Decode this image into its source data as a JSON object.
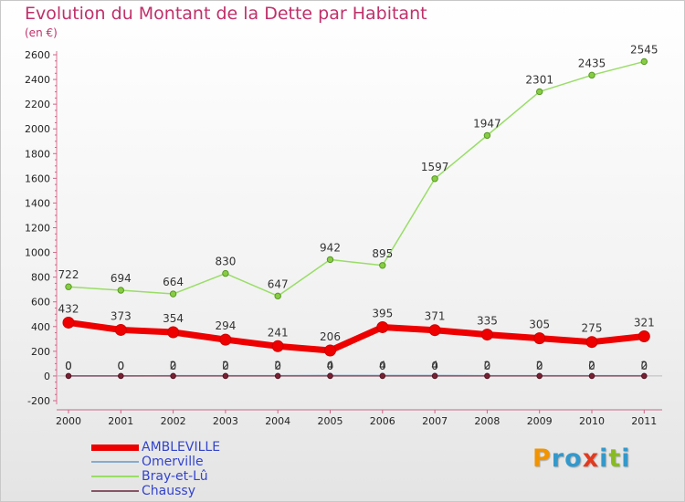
{
  "title": "Evolution du Montant de la Dette par Habitant",
  "subtitle": "(en €)",
  "logo": {
    "text": "Proxiti",
    "letters": [
      {
        "ch": "P",
        "color": "#f29400"
      },
      {
        "ch": "r",
        "color": "#3399cc"
      },
      {
        "ch": "o",
        "color": "#3399cc"
      },
      {
        "ch": "x",
        "color": "#e23a1e"
      },
      {
        "ch": "i",
        "color": "#3399cc"
      },
      {
        "ch": "t",
        "color": "#88bb22"
      },
      {
        "ch": "i",
        "color": "#3399cc"
      }
    ]
  },
  "chart_data": {
    "type": "line",
    "title": "Evolution du Montant de la Dette par Habitant",
    "xlabel": "",
    "ylabel": "(en €)",
    "x": [
      "2000",
      "2001",
      "2002",
      "2003",
      "2004",
      "2005",
      "2006",
      "2007",
      "2008",
      "2009",
      "2010",
      "2011"
    ],
    "ylim": [
      -200,
      2600
    ],
    "yticks": [
      -200,
      0,
      200,
      400,
      600,
      800,
      1000,
      1200,
      1400,
      1600,
      1800,
      2000,
      2200,
      2400,
      2600
    ],
    "grid": false,
    "legend_position": "bottom-left",
    "series": [
      {
        "name": "AMBLEVILLE",
        "color": "#ee0000",
        "values": [
          432,
          373,
          354,
          294,
          241,
          206,
          395,
          371,
          335,
          305,
          275,
          321
        ],
        "labels": [
          "432",
          "373",
          "354",
          "294",
          "241",
          "206",
          "395",
          "371",
          "335",
          "305",
          "275",
          "321"
        ]
      },
      {
        "name": "Omerville",
        "color": "#88aacc",
        "values": [
          0,
          0,
          2,
          2,
          2,
          4,
          4,
          4,
          2,
          2,
          2,
          2
        ],
        "labels": [
          "0",
          "0",
          "2",
          "2",
          "2",
          "4",
          "4",
          "4",
          "2",
          "2",
          "2",
          "2"
        ]
      },
      {
        "name": "Bray-et-Lû",
        "color": "#99dd66",
        "values": [
          722,
          694,
          664,
          830,
          647,
          942,
          895,
          1597,
          1947,
          2301,
          2435,
          2545
        ],
        "labels": [
          "722",
          "694",
          "664",
          "830",
          "647",
          "942",
          "895",
          "1597",
          "1947",
          "2301",
          "2435",
          "2545"
        ]
      },
      {
        "name": "Chaussy",
        "color": "#885566",
        "values": [
          0,
          0,
          0,
          0,
          0,
          0,
          0,
          0,
          0,
          0,
          0,
          0
        ],
        "labels": [
          "0",
          "0",
          "0",
          "0",
          "0",
          "0",
          "0",
          "0",
          "0",
          "0",
          "0",
          "0"
        ]
      }
    ]
  }
}
